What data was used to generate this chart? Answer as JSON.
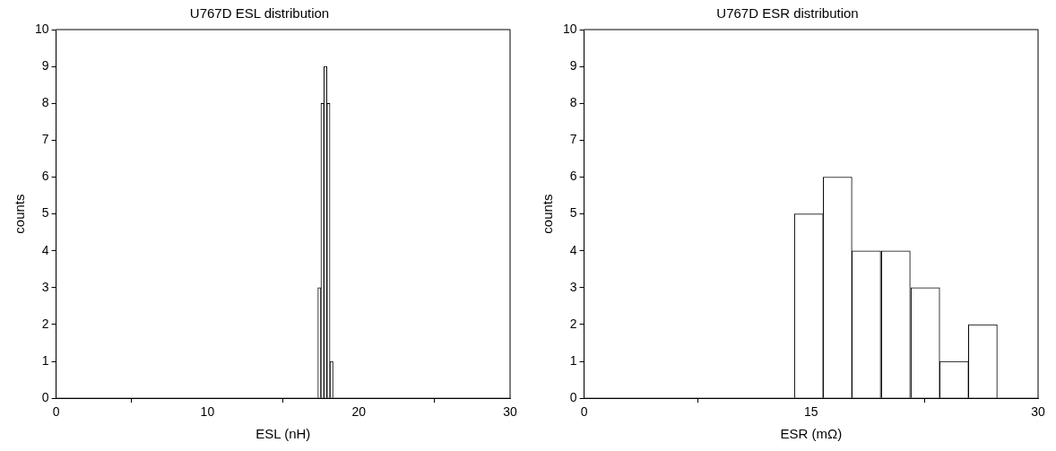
{
  "chart_data": [
    {
      "type": "histogram",
      "title": "U767D ESL distribution",
      "xlabel": "ESL (nH)",
      "ylabel": "counts",
      "color": "#ffffff",
      "bins": [
        17.3,
        17.5,
        17.7,
        17.9,
        18.1,
        18.3
      ],
      "values": [
        3,
        8,
        9,
        8,
        1
      ],
      "xlim": [
        0,
        30
      ],
      "xticks": [
        0,
        10,
        20,
        30
      ],
      "ylim": [
        0,
        10
      ],
      "yticks": [
        0,
        1,
        2,
        3,
        4,
        5,
        6,
        7,
        8,
        9,
        10
      ],
      "grid": false
    },
    {
      "type": "histogram",
      "title": "U767D ESR distribution",
      "xlabel": "ESR (mΩ)",
      "ylabel": "counts",
      "color": "#ffffff",
      "bins": [
        13.9,
        15.8,
        17.7,
        19.6,
        21.6,
        23.5,
        25.4,
        27.3
      ],
      "values": [
        5,
        6,
        4,
        4,
        3,
        1,
        2
      ],
      "xlim": [
        0,
        30
      ],
      "xticks": [
        0,
        15,
        30
      ],
      "ylim": [
        0,
        10
      ],
      "yticks": [
        0,
        1,
        2,
        3,
        4,
        5,
        6,
        7,
        8,
        9,
        10
      ],
      "grid": false
    }
  ]
}
